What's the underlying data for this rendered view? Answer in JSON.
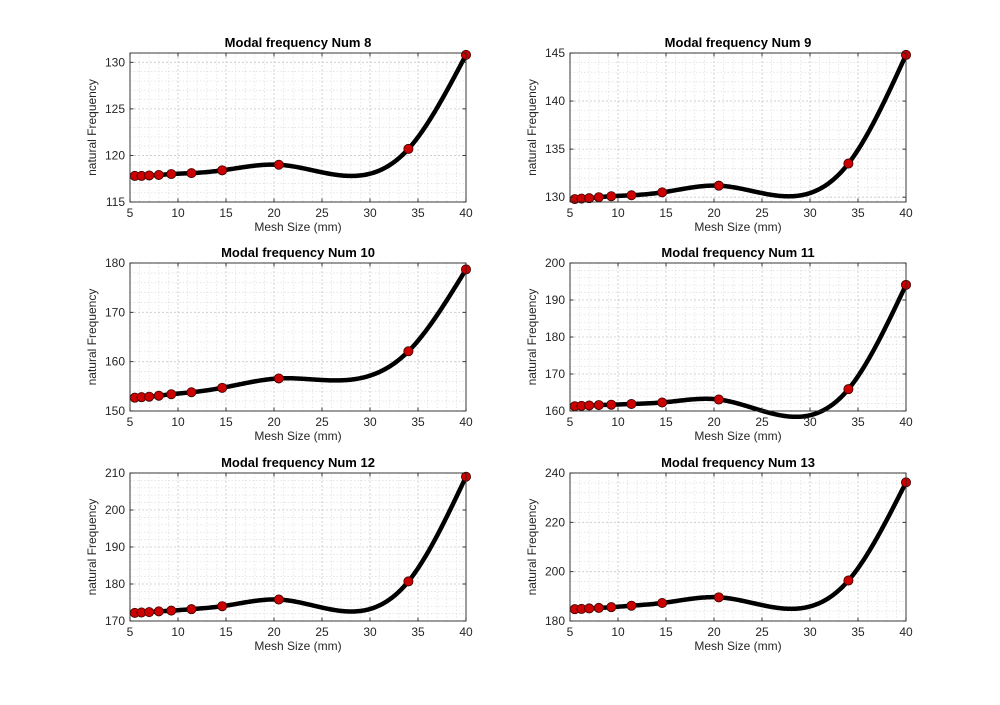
{
  "chart_data": [
    {
      "type": "line",
      "title": "Modal frequency Num 8",
      "xlabel": "Mesh Size (mm)",
      "ylabel": "natural Frequency",
      "xlim": [
        5,
        40
      ],
      "ylim": [
        115,
        131
      ],
      "xticks": [
        5,
        10,
        15,
        20,
        25,
        30,
        35,
        40
      ],
      "yticks": [
        115,
        120,
        125,
        130
      ],
      "grid": true,
      "minor_grid": true,
      "x": [
        5.5,
        6.2,
        7.0,
        8.0,
        9.3,
        11.4,
        14.6,
        20.5,
        34.0,
        40.0
      ],
      "y": [
        117.8,
        117.8,
        117.85,
        117.9,
        118.0,
        118.1,
        118.4,
        119.0,
        120.7,
        130.8
      ],
      "marker_color": "#cc0000",
      "line_color": "#000000"
    },
    {
      "type": "line",
      "title": "Modal frequency Num 9",
      "xlabel": "Mesh Size (mm)",
      "ylabel": "natural Frequency",
      "xlim": [
        5,
        40
      ],
      "ylim": [
        129.5,
        145
      ],
      "xticks": [
        5,
        10,
        15,
        20,
        25,
        30,
        35,
        40
      ],
      "yticks": [
        130,
        135,
        140,
        145
      ],
      "grid": true,
      "minor_grid": true,
      "x": [
        5.5,
        6.2,
        7.0,
        8.0,
        9.3,
        11.4,
        14.6,
        20.5,
        34.0,
        40.0
      ],
      "y": [
        129.8,
        129.85,
        129.9,
        130.0,
        130.1,
        130.2,
        130.5,
        131.2,
        133.5,
        144.8
      ],
      "marker_color": "#cc0000",
      "line_color": "#000000"
    },
    {
      "type": "line",
      "title": "Modal frequency Num 10",
      "xlabel": "Mesh Size (mm)",
      "ylabel": "natural Frequency",
      "xlim": [
        5,
        40
      ],
      "ylim": [
        150,
        180
      ],
      "xticks": [
        5,
        10,
        15,
        20,
        25,
        30,
        35,
        40
      ],
      "yticks": [
        150,
        160,
        170,
        180
      ],
      "grid": true,
      "minor_grid": true,
      "x": [
        5.5,
        6.2,
        7.0,
        8.0,
        9.3,
        11.4,
        14.6,
        20.5,
        34.0,
        40.0
      ],
      "y": [
        152.7,
        152.8,
        152.9,
        153.1,
        153.4,
        153.8,
        154.7,
        156.6,
        162.1,
        178.7
      ],
      "marker_color": "#cc0000",
      "line_color": "#000000"
    },
    {
      "type": "line",
      "title": "Modal frequency Num 11",
      "xlabel": "Mesh Size (mm)",
      "ylabel": "natural Frequency",
      "xlim": [
        5,
        40
      ],
      "ylim": [
        160,
        200
      ],
      "xticks": [
        5,
        10,
        15,
        20,
        25,
        30,
        35,
        40
      ],
      "yticks": [
        160,
        170,
        180,
        190,
        200
      ],
      "grid": true,
      "minor_grid": true,
      "x": [
        5.5,
        6.2,
        7.0,
        8.0,
        9.3,
        11.4,
        14.6,
        20.5,
        34.0,
        40.0
      ],
      "y": [
        161.3,
        161.4,
        161.5,
        161.6,
        161.7,
        161.9,
        162.3,
        163.1,
        165.9,
        194.1
      ],
      "marker_color": "#cc0000",
      "line_color": "#000000"
    },
    {
      "type": "line",
      "title": "Modal frequency Num 12",
      "xlabel": "Mesh Size (mm)",
      "ylabel": "natural Frequency",
      "xlim": [
        5,
        40
      ],
      "ylim": [
        170,
        210
      ],
      "xticks": [
        5,
        10,
        15,
        20,
        25,
        30,
        35,
        40
      ],
      "yticks": [
        170,
        180,
        190,
        200,
        210
      ],
      "grid": true,
      "minor_grid": true,
      "x": [
        5.5,
        6.2,
        7.0,
        8.0,
        9.3,
        11.4,
        14.6,
        20.5,
        34.0,
        40.0
      ],
      "y": [
        172.2,
        172.3,
        172.4,
        172.6,
        172.8,
        173.2,
        174.0,
        175.8,
        180.7,
        209.0
      ],
      "marker_color": "#cc0000",
      "line_color": "#000000"
    },
    {
      "type": "line",
      "title": "Modal frequency Num 13",
      "xlabel": "Mesh Size (mm)",
      "ylabel": "natural Frequency",
      "xlim": [
        5,
        40
      ],
      "ylim": [
        180,
        240
      ],
      "xticks": [
        5,
        10,
        15,
        20,
        25,
        30,
        35,
        40
      ],
      "yticks": [
        180,
        200,
        220,
        240
      ],
      "grid": true,
      "minor_grid": true,
      "x": [
        5.5,
        6.2,
        7.0,
        8.0,
        9.3,
        11.4,
        14.6,
        20.5,
        34.0,
        40.0
      ],
      "y": [
        184.8,
        184.9,
        185.1,
        185.3,
        185.6,
        186.2,
        187.3,
        189.6,
        196.4,
        236.2
      ],
      "marker_color": "#cc0000",
      "line_color": "#000000"
    }
  ]
}
